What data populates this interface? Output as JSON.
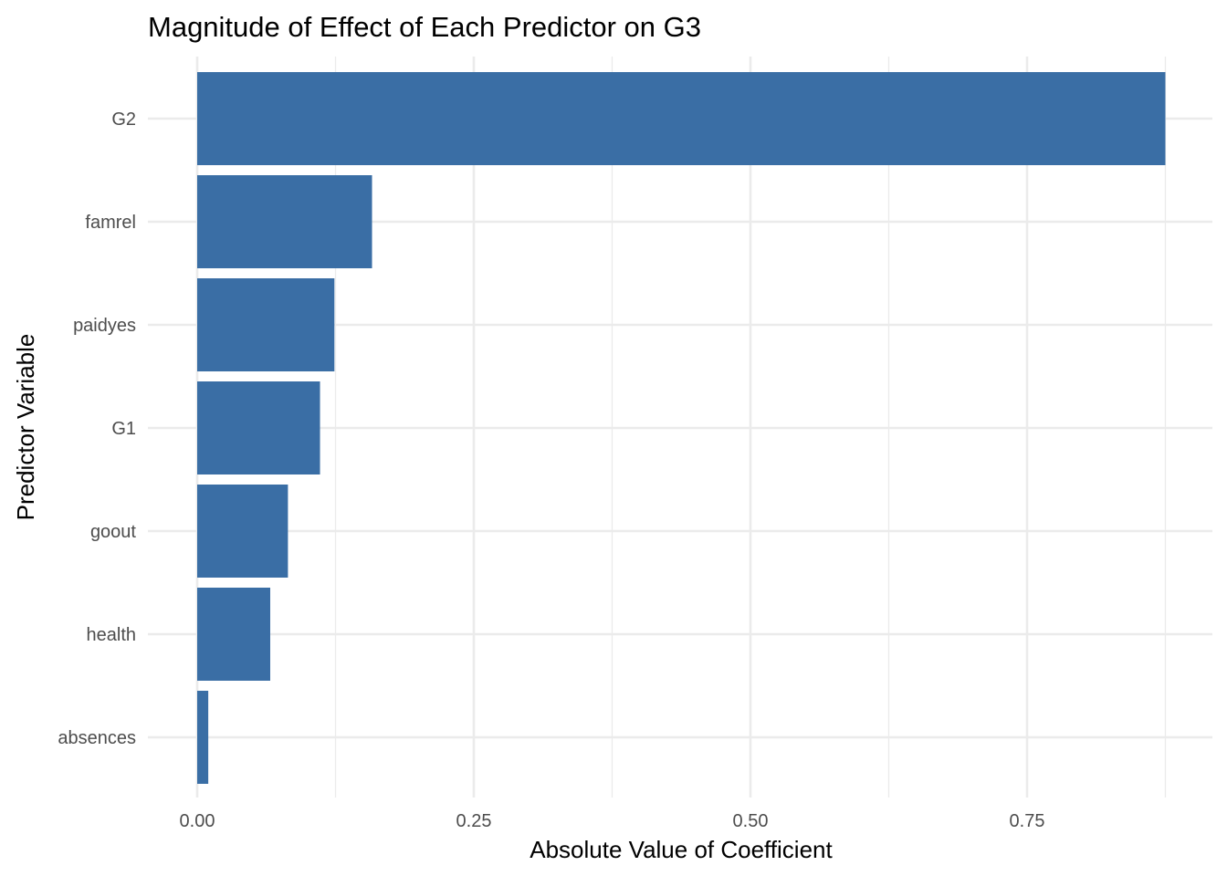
{
  "chart_data": {
    "type": "bar",
    "orientation": "horizontal",
    "title": "Magnitude of Effect of Each Predictor on G3",
    "xlabel": "Absolute Value of Coefficient",
    "ylabel": "Predictor Variable",
    "categories": [
      "G2",
      "famrel",
      "paidyes",
      "G1",
      "goout",
      "health",
      "absences"
    ],
    "values": [
      0.875,
      0.158,
      0.124,
      0.111,
      0.082,
      0.066,
      0.01
    ],
    "xlim": [
      0,
      0.875
    ],
    "x_ticks": [
      0.0,
      0.25,
      0.5,
      0.75
    ],
    "x_tick_labels": [
      "0.00",
      "0.25",
      "0.50",
      "0.75"
    ],
    "x_minor_ticks": [
      0.125,
      0.375,
      0.625,
      0.875
    ],
    "bar_color": "#3a6ea5",
    "grid": true,
    "legend": "none"
  }
}
